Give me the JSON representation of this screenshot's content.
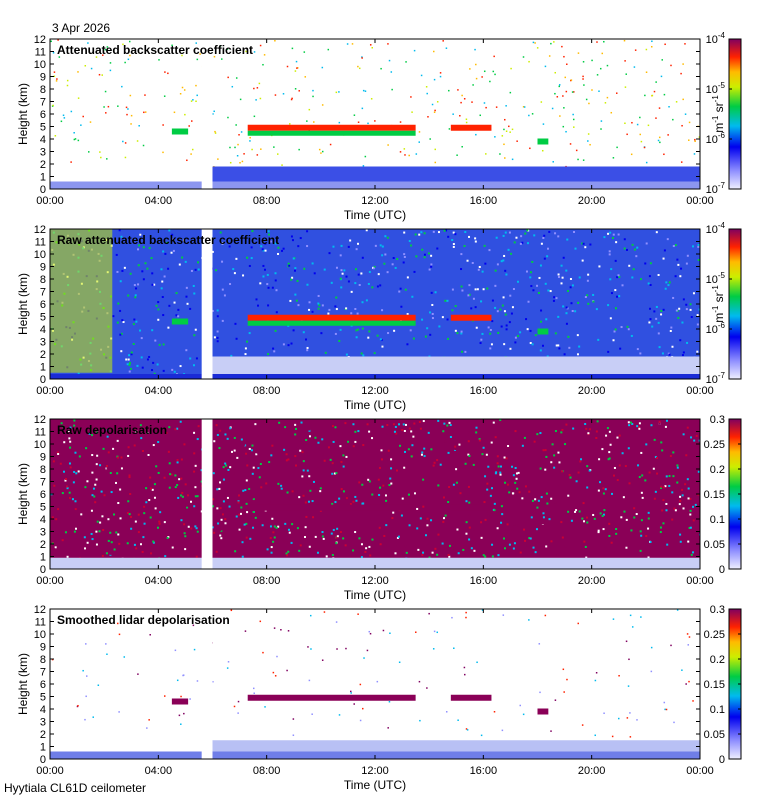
{
  "date_label": "3 Apr 2026",
  "footer_label": "Hyytiala CL61D ceilometer",
  "chart_data": [
    {
      "type": "heatmap",
      "title": "Attenuated backscatter coefficient",
      "xlabel": "Time (UTC)",
      "ylabel": "Height (km)",
      "x_ticks": [
        "00:00",
        "04:00",
        "08:00",
        "12:00",
        "16:00",
        "20:00",
        "00:00"
      ],
      "xlim": [
        0,
        24
      ],
      "ylim": [
        0,
        12
      ],
      "colorbar": {
        "scale": "log",
        "range": [
          1e-07,
          0.0001
        ],
        "ticks": [
          "10-7",
          "10-6",
          "10-5",
          "10-4"
        ],
        "unit": "m-1 sr-1"
      },
      "data_gap_hours": [
        5.6,
        6.0
      ],
      "features": [
        {
          "label": "cloud layer",
          "start_h": 7.3,
          "end_h": 13.5,
          "height_km": 4.9
        },
        {
          "label": "cloud layer",
          "start_h": 14.8,
          "end_h": 16.3,
          "height_km": 4.9
        },
        {
          "label": "cloud patch",
          "start_h": 4.5,
          "end_h": 5.1,
          "height_km": 4.6
        },
        {
          "label": "cloud patch",
          "start_h": 18.0,
          "end_h": 18.4,
          "height_km": 3.8
        }
      ]
    },
    {
      "type": "heatmap",
      "title": "Raw attenuated backscatter coefficient",
      "xlabel": "Time (UTC)",
      "ylabel": "Height (km)",
      "x_ticks": [
        "00:00",
        "04:00",
        "08:00",
        "12:00",
        "16:00",
        "20:00",
        "00:00"
      ],
      "xlim": [
        0,
        24
      ],
      "ylim": [
        0,
        12
      ],
      "colorbar": {
        "scale": "log",
        "range": [
          1e-07,
          0.0001
        ],
        "ticks": [
          "10-7",
          "10-6",
          "10-5",
          "10-4"
        ],
        "unit": "m-1 sr-1"
      },
      "data_gap_hours": [
        5.6,
        6.0
      ]
    },
    {
      "type": "heatmap",
      "title": "Raw depolarisation",
      "xlabel": "Time (UTC)",
      "ylabel": "Height (km)",
      "x_ticks": [
        "00:00",
        "04:00",
        "08:00",
        "12:00",
        "16:00",
        "20:00",
        "00:00"
      ],
      "xlim": [
        0,
        24
      ],
      "ylim": [
        0,
        12
      ],
      "colorbar": {
        "scale": "linear",
        "range": [
          0,
          0.3
        ],
        "ticks": [
          "0",
          "0.05",
          "0.1",
          "0.15",
          "0.2",
          "0.25",
          "0.3"
        ]
      },
      "data_gap_hours": [
        5.6,
        6.0
      ]
    },
    {
      "type": "heatmap",
      "title": "Smoothed lidar depolarisation",
      "xlabel": "Time (UTC)",
      "ylabel": "Height (km)",
      "x_ticks": [
        "00:00",
        "04:00",
        "08:00",
        "12:00",
        "16:00",
        "20:00",
        "00:00"
      ],
      "xlim": [
        0,
        24
      ],
      "ylim": [
        0,
        12
      ],
      "colorbar": {
        "scale": "linear",
        "range": [
          0,
          0.3
        ],
        "ticks": [
          "0",
          "0.05",
          "0.1",
          "0.15",
          "0.2",
          "0.25",
          "0.3"
        ]
      },
      "data_gap_hours": [
        5.6,
        6.0
      ]
    }
  ],
  "y_tick_labels": [
    "0",
    "1",
    "2",
    "3",
    "4",
    "5",
    "6",
    "7",
    "8",
    "9",
    "10",
    "11",
    "12"
  ],
  "colorbar_unit_parts": {
    "m": "m",
    "m_exp": "-1",
    "sr": " sr",
    "sr_exp": "-1"
  },
  "log_tick_parts": {
    "base": "10",
    "exps": [
      "-7",
      "-6",
      "-5",
      "-4"
    ]
  }
}
